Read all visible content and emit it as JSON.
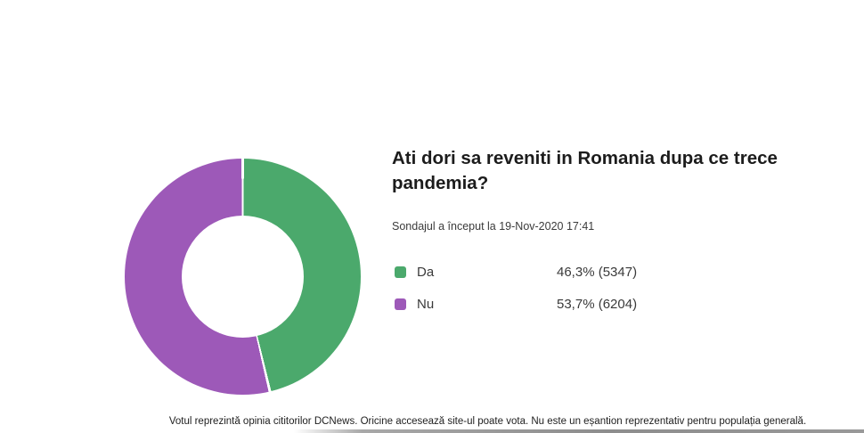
{
  "poll": {
    "title": "Ati dori sa reveniti in Romania dupa ce trece pandemia?",
    "subtitle": "Sondajul a început la 19-Nov-2020 17:41",
    "options": [
      {
        "label": "Da",
        "percent": "46,3%",
        "votes": "5347",
        "value_text": "46,3% (5347)",
        "color": "#4BA96C"
      },
      {
        "label": "Nu",
        "percent": "53,7%",
        "votes": "6204",
        "value_text": "53,7% (6204)",
        "color": "#9D59B8"
      }
    ],
    "footer": "Votul reprezintă opinia cititorilor DCNews. Oricine accesează site-ul poate vota. Nu este un eșantion reprezentativ pentru populația generală."
  },
  "chart_data": {
    "type": "pie",
    "subtype": "donut",
    "title": "Ati dori sa reveniti in Romania dupa ce trece pandemia?",
    "categories": [
      "Da",
      "Nu"
    ],
    "values": [
      46.3,
      53.7
    ],
    "counts": [
      5347,
      6204
    ],
    "colors": [
      "#4BA96C",
      "#9D59B8"
    ],
    "start_angle_deg": 0,
    "direction": "clockwise",
    "inner_radius_ratio": 0.515,
    "slice_separator_color": "#ffffff",
    "legend_position": "right"
  }
}
